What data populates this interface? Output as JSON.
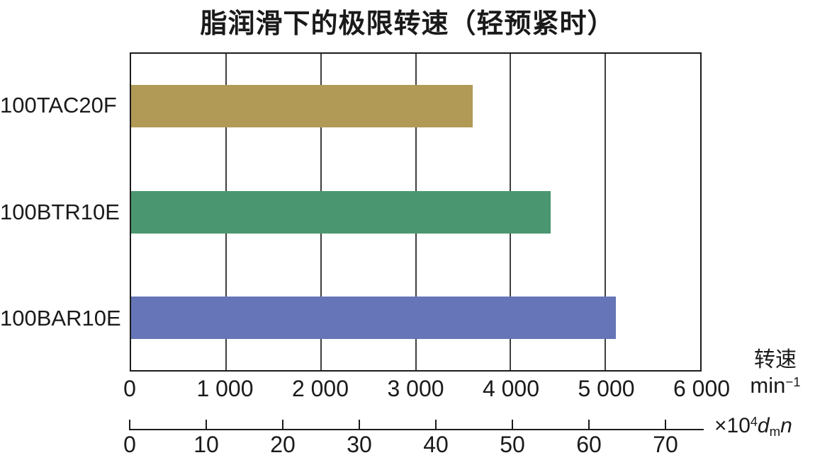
{
  "title": "脂润滑下的极限转速（轻预紧时）",
  "colors": {
    "text": "#1a1a1a",
    "axis": "#1c1c1c",
    "gridline": "#3e3e3e",
    "background": "#ffffff"
  },
  "chart_data": {
    "type": "bar",
    "orientation": "horizontal",
    "title": "脂润滑下的极限转速（轻预紧时）",
    "categories": [
      "100TAC20F",
      "100BTR10E",
      "100BAR10E"
    ],
    "series": [
      {
        "name": "极限转速",
        "values": [
          3600,
          4420,
          5110
        ]
      }
    ],
    "bar_colors": [
      "#b09a55",
      "#4a9670",
      "#6575b7"
    ],
    "grid": true,
    "legend_position": "none",
    "x_axis": {
      "name": "转速",
      "unit_base": "min",
      "unit_exponent": "−1",
      "min": 0,
      "max": 6000,
      "tick_values": [
        0,
        1000,
        2000,
        3000,
        4000,
        5000,
        6000
      ],
      "tick_labels": [
        "0",
        "1 000",
        "2 000",
        "3 000",
        "4 000",
        "5 000",
        "6 000"
      ]
    },
    "secondary_x_axis": {
      "label_prefix": "×10",
      "label_exponent": "4",
      "label_var1": "d",
      "label_subscript": "m",
      "label_var2": "n",
      "min": 0,
      "max": 75,
      "tick_values": [
        0,
        10,
        20,
        30,
        40,
        50,
        60,
        70
      ],
      "tick_labels": [
        "0",
        "10",
        "20",
        "30",
        "40",
        "50",
        "60",
        "70"
      ]
    }
  }
}
